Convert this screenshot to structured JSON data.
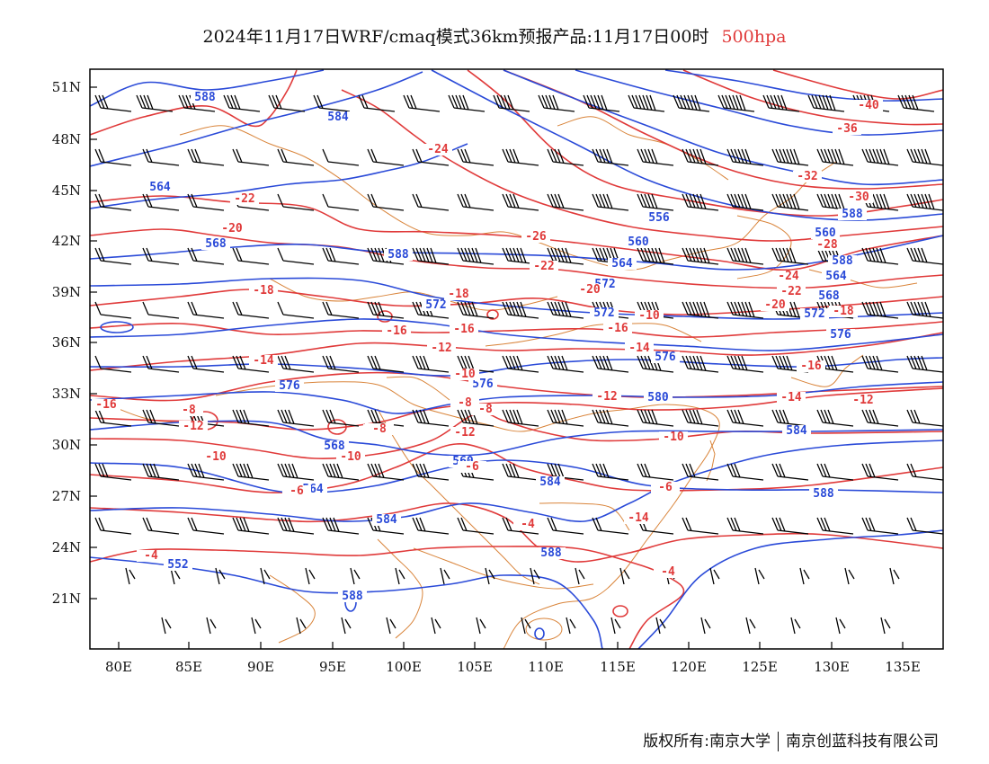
{
  "title": {
    "main": "2024年11月17日WRF/cmaq模式36km预报产品:11月17日00时",
    "level": "500hpa"
  },
  "colors": {
    "height_contour": "#2a4ad8",
    "temperature_contour": "#e03a3a",
    "boundary": "#d9843a",
    "wind_barb": "#000000"
  },
  "icons": [
    "wind-barb-icon"
  ],
  "axes": {
    "lat_labels": [
      "51N",
      "48N",
      "45N",
      "42N",
      "39N",
      "36N",
      "33N",
      "30N",
      "27N",
      "24N",
      "21N"
    ],
    "lon_labels": [
      "80E",
      "85E",
      "90E",
      "95E",
      "100E",
      "105E",
      "110E",
      "115E",
      "120E",
      "125E",
      "130E",
      "135E"
    ]
  },
  "height_labels": [
    "588",
    "584",
    "564",
    "568",
    "588",
    "572",
    "572",
    "576",
    "576",
    "580",
    "584",
    "588",
    "584",
    "560",
    "584",
    "588",
    "556",
    "560",
    "564",
    "588",
    "552",
    "588",
    "560",
    "564",
    "568",
    "572",
    "576",
    "572",
    "564",
    "568",
    "576",
    "588"
  ],
  "temp_labels": [
    "-24",
    "-22",
    "-20",
    "-18",
    "-16",
    "-16",
    "-14",
    "-14",
    "-12",
    "-12",
    "-10",
    "-10",
    "-8",
    "-8",
    "-6",
    "-4",
    "-4",
    "-26",
    "-22",
    "-20",
    "-18",
    "-16",
    "-14",
    "-12",
    "-10",
    "-8",
    "-6",
    "-4",
    "-40",
    "-36",
    "-32",
    "-30",
    "-28",
    "-24",
    "-22",
    "-20",
    "-18",
    "-16",
    "-14",
    "-12",
    "-10",
    "-8",
    "-6",
    "-10",
    "-12",
    "-16",
    "-8"
  ],
  "copyright": {
    "owner": "版权所有:南京大学",
    "company": "南京创蓝科技有限公司"
  }
}
